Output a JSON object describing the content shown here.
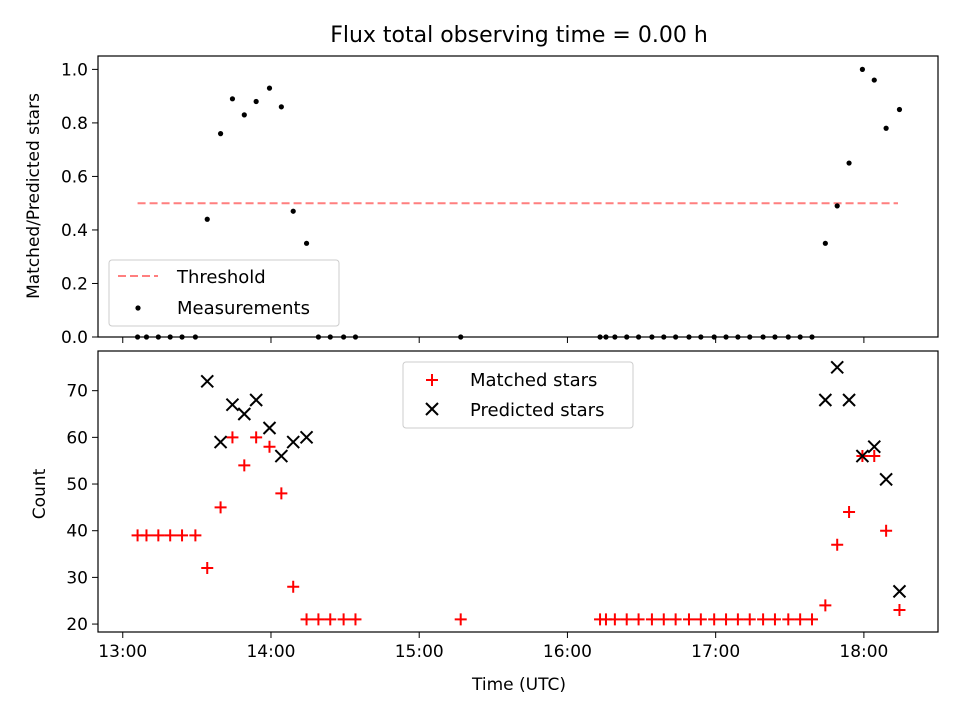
{
  "chart_data": [
    {
      "type": "scatter",
      "title": "Flux total observing time = 0.00 h",
      "xlabel": "",
      "ylabel": "Matched/Predicted stars",
      "xlim": [
        12.833,
        18.5
      ],
      "ylim": [
        0.0,
        1.05
      ],
      "xticks": [
        13,
        14,
        15,
        16,
        17,
        18
      ],
      "xtick_labels": [],
      "yticks": [
        0.0,
        0.2,
        0.4,
        0.6,
        0.8,
        1.0
      ],
      "ytick_labels": [
        "0.0",
        "0.2",
        "0.4",
        "0.6",
        "0.8",
        "1.0"
      ],
      "legend_position": "lower-left",
      "threshold": {
        "name": "Threshold",
        "value": 0.5,
        "x": [
          13.1,
          18.23
        ],
        "color": "#ff7f7f",
        "style": "dashed"
      },
      "series": [
        {
          "name": "Measurements",
          "color": "#000000",
          "marker": "dot",
          "points": [
            [
              13.1,
              0.0
            ],
            [
              13.16,
              0.0
            ],
            [
              13.24,
              0.0
            ],
            [
              13.32,
              0.0
            ],
            [
              13.4,
              0.0
            ],
            [
              13.49,
              0.0
            ],
            [
              13.57,
              0.44
            ],
            [
              13.66,
              0.76
            ],
            [
              13.74,
              0.89
            ],
            [
              13.82,
              0.83
            ],
            [
              13.9,
              0.88
            ],
            [
              13.99,
              0.93
            ],
            [
              14.07,
              0.86
            ],
            [
              14.15,
              0.47
            ],
            [
              14.24,
              0.35
            ],
            [
              14.32,
              0.0
            ],
            [
              14.4,
              0.0
            ],
            [
              14.49,
              0.0
            ],
            [
              14.57,
              0.0
            ],
            [
              15.28,
              0.0
            ],
            [
              16.22,
              0.0
            ],
            [
              16.26,
              0.0
            ],
            [
              16.32,
              0.0
            ],
            [
              16.4,
              0.0
            ],
            [
              16.48,
              0.0
            ],
            [
              16.57,
              0.0
            ],
            [
              16.65,
              0.0
            ],
            [
              16.73,
              0.0
            ],
            [
              16.82,
              0.0
            ],
            [
              16.9,
              0.0
            ],
            [
              16.99,
              0.0
            ],
            [
              17.07,
              0.0
            ],
            [
              17.15,
              0.0
            ],
            [
              17.23,
              0.0
            ],
            [
              17.32,
              0.0
            ],
            [
              17.4,
              0.0
            ],
            [
              17.49,
              0.0
            ],
            [
              17.57,
              0.0
            ],
            [
              17.65,
              0.0
            ],
            [
              17.74,
              0.35
            ],
            [
              17.82,
              0.49
            ],
            [
              17.9,
              0.65
            ],
            [
              17.99,
              1.0
            ],
            [
              18.07,
              0.96
            ],
            [
              18.15,
              0.78
            ],
            [
              18.24,
              0.85
            ]
          ]
        }
      ]
    },
    {
      "type": "scatter",
      "title": "",
      "xlabel": "Time (UTC)",
      "ylabel": "Count",
      "xlim": [
        12.833,
        18.5
      ],
      "ylim": [
        18.3,
        78.5
      ],
      "xticks": [
        13,
        14,
        15,
        16,
        17,
        18
      ],
      "xtick_labels": [
        "13:00",
        "14:00",
        "15:00",
        "16:00",
        "17:00",
        "18:00"
      ],
      "yticks": [
        20,
        30,
        40,
        50,
        60,
        70
      ],
      "ytick_labels": [
        "20",
        "30",
        "40",
        "50",
        "60",
        "70"
      ],
      "legend_position": "top-center",
      "series": [
        {
          "name": "Matched stars",
          "color": "#ff0000",
          "marker": "plus",
          "points": [
            [
              13.1,
              39
            ],
            [
              13.16,
              39
            ],
            [
              13.24,
              39
            ],
            [
              13.32,
              39
            ],
            [
              13.4,
              39
            ],
            [
              13.49,
              39
            ],
            [
              13.57,
              32
            ],
            [
              13.66,
              45
            ],
            [
              13.74,
              60
            ],
            [
              13.82,
              54
            ],
            [
              13.9,
              60
            ],
            [
              13.99,
              58
            ],
            [
              14.07,
              48
            ],
            [
              14.15,
              28
            ],
            [
              14.24,
              21
            ],
            [
              14.32,
              21
            ],
            [
              14.4,
              21
            ],
            [
              14.49,
              21
            ],
            [
              14.57,
              21
            ],
            [
              15.28,
              21
            ],
            [
              16.22,
              21
            ],
            [
              16.26,
              21
            ],
            [
              16.32,
              21
            ],
            [
              16.4,
              21
            ],
            [
              16.48,
              21
            ],
            [
              16.57,
              21
            ],
            [
              16.65,
              21
            ],
            [
              16.73,
              21
            ],
            [
              16.82,
              21
            ],
            [
              16.9,
              21
            ],
            [
              16.99,
              21
            ],
            [
              17.07,
              21
            ],
            [
              17.15,
              21
            ],
            [
              17.23,
              21
            ],
            [
              17.32,
              21
            ],
            [
              17.4,
              21
            ],
            [
              17.49,
              21
            ],
            [
              17.57,
              21
            ],
            [
              17.65,
              21
            ],
            [
              17.74,
              24
            ],
            [
              17.82,
              37
            ],
            [
              17.9,
              44
            ],
            [
              17.99,
              56
            ],
            [
              18.07,
              56
            ],
            [
              18.15,
              40
            ],
            [
              18.24,
              23
            ]
          ]
        },
        {
          "name": "Predicted stars",
          "color": "#000000",
          "marker": "x",
          "points": [
            [
              13.57,
              72
            ],
            [
              13.66,
              59
            ],
            [
              13.74,
              67
            ],
            [
              13.82,
              65
            ],
            [
              13.9,
              68
            ],
            [
              13.99,
              62
            ],
            [
              14.07,
              56
            ],
            [
              14.15,
              59
            ],
            [
              14.24,
              60
            ],
            [
              17.74,
              68
            ],
            [
              17.82,
              75
            ],
            [
              17.9,
              68
            ],
            [
              17.99,
              56
            ],
            [
              18.07,
              58
            ],
            [
              18.15,
              51
            ],
            [
              18.24,
              27
            ]
          ]
        }
      ]
    }
  ]
}
